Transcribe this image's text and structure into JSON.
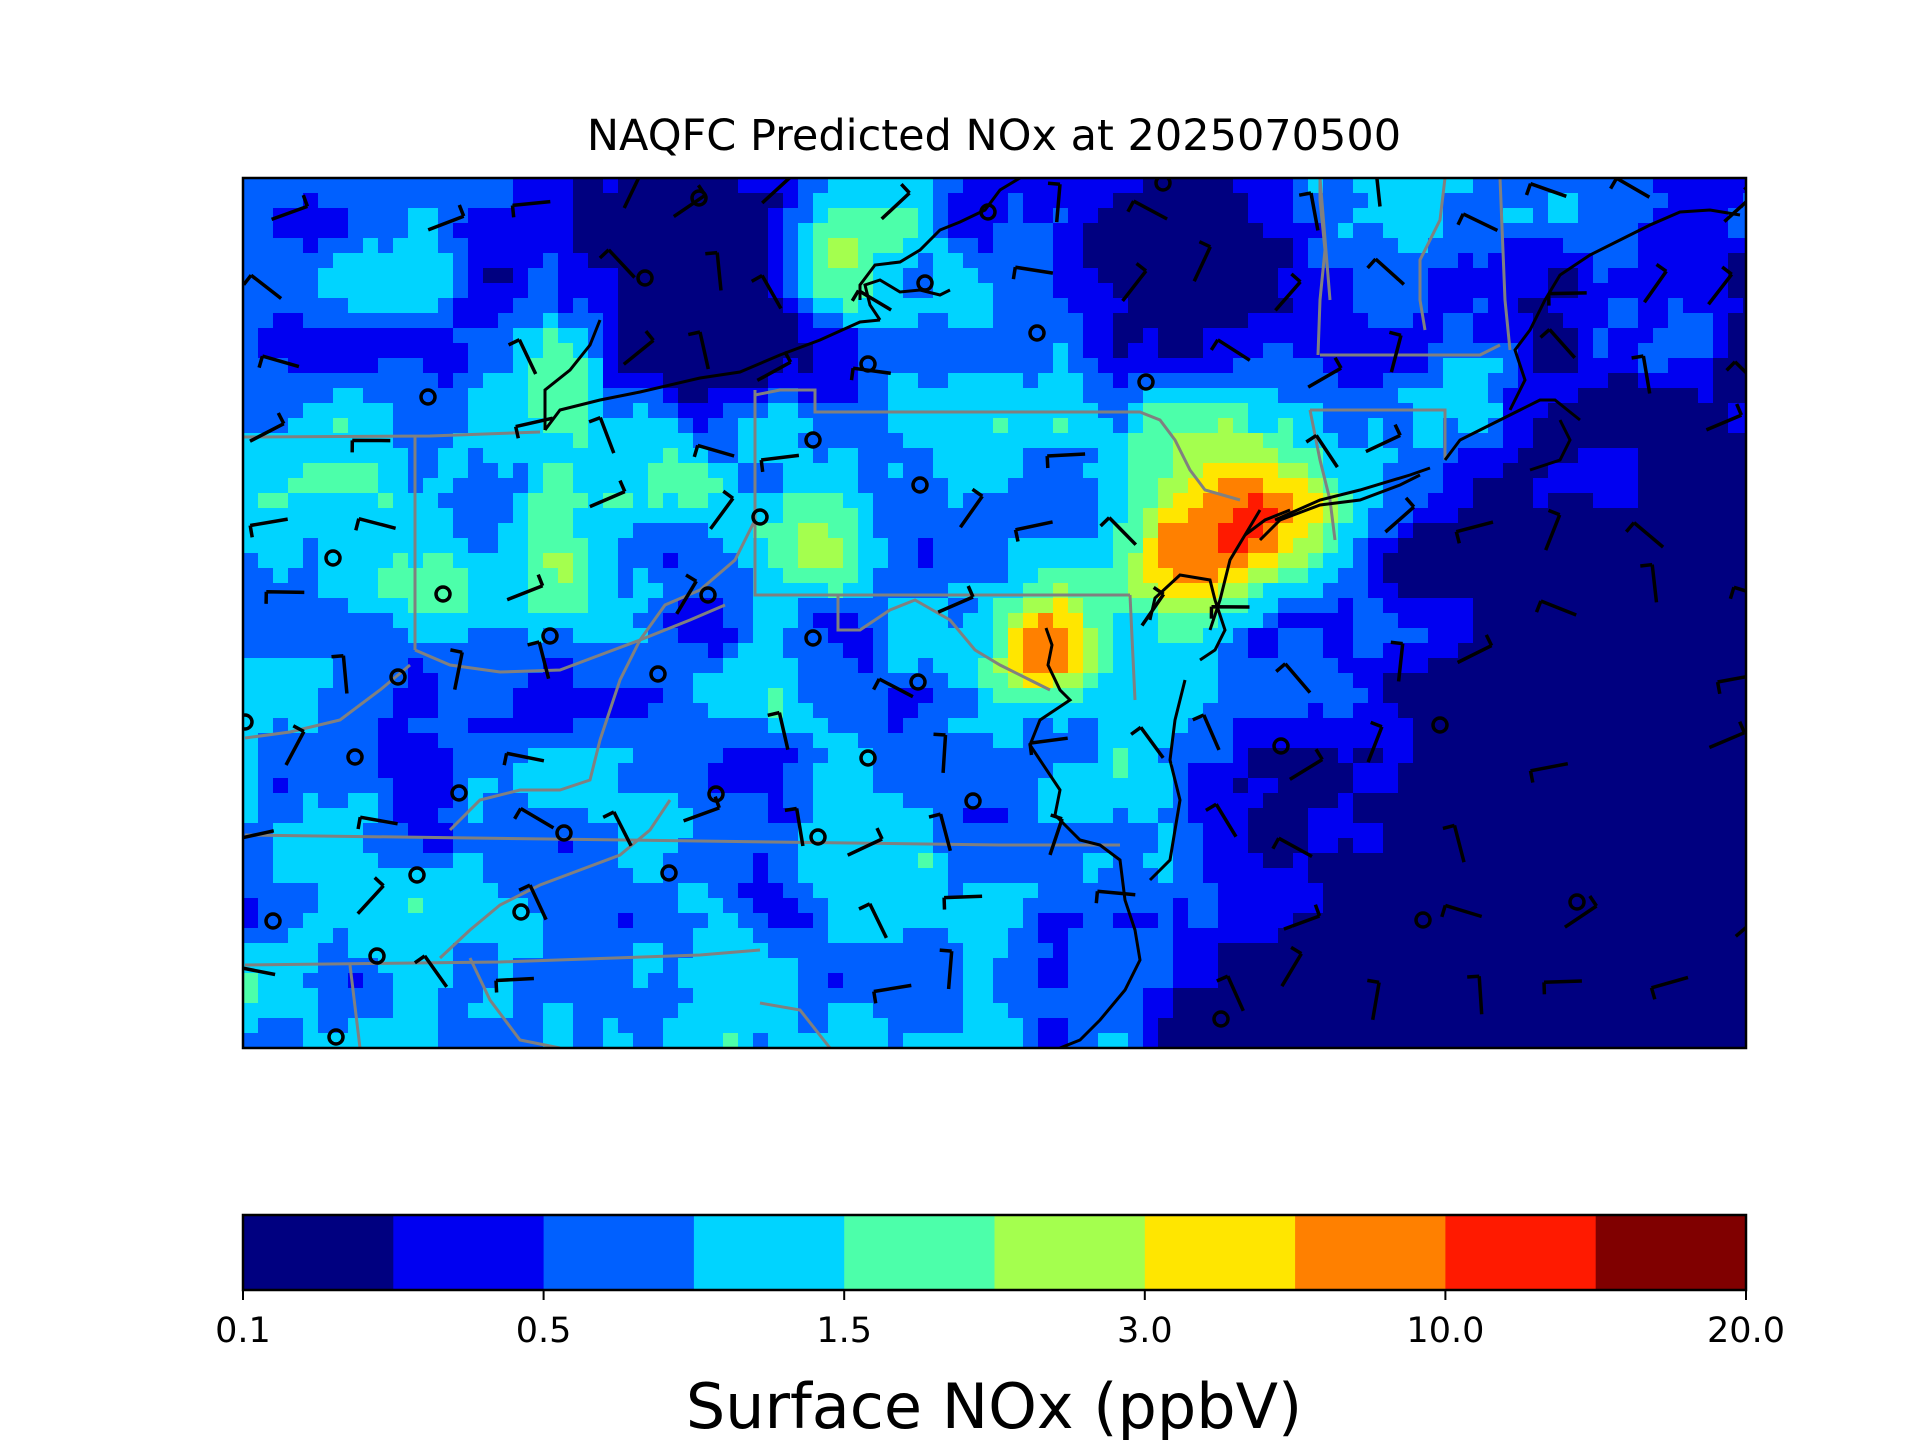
{
  "title": "NAQFC Predicted NOx at 2025070500",
  "colorbar": {
    "label": "Surface NOx (ppbV)",
    "tick_labels": [
      "0.1",
      "0.5",
      "1.5",
      "3.0",
      "10.0",
      "20.0"
    ],
    "bins": [
      {
        "color": "#000080"
      },
      {
        "color": "#0000f1"
      },
      {
        "color": "#0060ff"
      },
      {
        "color": "#00d4ff"
      },
      {
        "color": "#4cffaa"
      },
      {
        "color": "#a4ff4e"
      },
      {
        "color": "#ffe600"
      },
      {
        "color": "#ff8000"
      },
      {
        "color": "#ff1a00"
      },
      {
        "color": "#800000"
      }
    ]
  },
  "map": {
    "field": "Surface NOx",
    "units": "ppbV",
    "overlays": [
      "state boundaries",
      "coastlines",
      "wind barbs",
      "station markers"
    ],
    "boundary_color": "#808080",
    "coast_color": "#000000"
  }
}
